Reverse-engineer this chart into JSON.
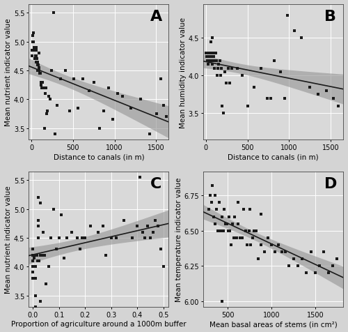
{
  "panel_A": {
    "label": "A",
    "xlabel": "Distance to canals (in m)",
    "ylabel": "Mean nutrient indicator value",
    "xlim": [
      -30,
      1650
    ],
    "ylim": [
      3.3,
      5.65
    ],
    "xticks": [
      0,
      500,
      1000,
      1500
    ],
    "yticks": [
      3.5,
      4.0,
      4.5,
      5.0,
      5.5
    ],
    "x": [
      5,
      10,
      15,
      18,
      22,
      28,
      35,
      40,
      45,
      50,
      55,
      58,
      62,
      68,
      72,
      78,
      82,
      88,
      92,
      98,
      105,
      115,
      120,
      128,
      135,
      145,
      155,
      165,
      175,
      185,
      195,
      210,
      225,
      245,
      265,
      285,
      310,
      350,
      410,
      460,
      510,
      560,
      620,
      690,
      750,
      820,
      870,
      930,
      980,
      1040,
      1100,
      1200,
      1310,
      1420,
      1510,
      1560,
      1590,
      1620,
      60,
      75,
      90
    ],
    "y": [
      4.75,
      4.85,
      5.1,
      5.0,
      5.15,
      5.0,
      4.9,
      4.85,
      4.7,
      4.75,
      4.85,
      4.65,
      4.9,
      4.7,
      4.65,
      4.6,
      4.6,
      4.55,
      4.5,
      4.45,
      4.45,
      4.3,
      4.25,
      4.2,
      4.3,
      4.2,
      3.5,
      4.1,
      4.2,
      3.75,
      3.8,
      4.05,
      4.0,
      4.5,
      5.5,
      3.4,
      3.9,
      4.35,
      4.5,
      3.8,
      4.35,
      3.85,
      4.35,
      4.15,
      4.3,
      3.5,
      3.8,
      4.2,
      3.65,
      4.1,
      4.05,
      3.85,
      4.0,
      3.4,
      3.75,
      4.35,
      3.9,
      3.7,
      4.75,
      4.5,
      4.8
    ]
  },
  "panel_B": {
    "label": "B",
    "xlabel": "Distance to canals (in m)",
    "ylabel": "Mean humidity indicator value",
    "xlim": [
      -30,
      1650
    ],
    "ylim": [
      3.15,
      4.95
    ],
    "xticks": [
      0,
      500,
      1000,
      1500
    ],
    "yticks": [
      3.5,
      4.0,
      4.5
    ],
    "x": [
      5,
      10,
      15,
      18,
      22,
      28,
      35,
      40,
      45,
      50,
      55,
      58,
      62,
      68,
      72,
      78,
      82,
      88,
      92,
      98,
      105,
      115,
      120,
      128,
      135,
      145,
      155,
      165,
      175,
      185,
      195,
      210,
      225,
      245,
      265,
      285,
      310,
      380,
      440,
      500,
      580,
      660,
      740,
      820,
      900,
      980,
      1060,
      1150,
      1250,
      1350,
      1450,
      1530,
      1590,
      60,
      75,
      950,
      780
    ],
    "y": [
      4.3,
      4.25,
      4.3,
      4.2,
      4.15,
      4.3,
      4.2,
      4.25,
      4.2,
      4.3,
      4.2,
      4.2,
      4.25,
      4.3,
      4.2,
      4.15,
      4.3,
      4.2,
      4.25,
      4.1,
      4.2,
      4.3,
      4.3,
      4.2,
      4.0,
      4.1,
      4.15,
      4.2,
      4.0,
      4.1,
      3.6,
      3.5,
      4.05,
      3.9,
      4.1,
      3.9,
      4.1,
      4.1,
      4.0,
      3.6,
      3.85,
      4.1,
      3.7,
      4.2,
      4.05,
      4.8,
      4.6,
      4.5,
      3.85,
      3.75,
      3.8,
      3.7,
      3.6,
      4.45,
      4.5,
      3.7,
      3.7
    ]
  },
  "panel_C": {
    "label": "C",
    "xlabel": "Proportion of agriculture around a 1000m buffer",
    "ylabel": "Mean nutrient indicator value",
    "xlim": [
      -0.015,
      0.52
    ],
    "ylim": [
      3.3,
      5.65
    ],
    "xticks": [
      0.0,
      0.1,
      0.2,
      0.3,
      0.4,
      0.5
    ],
    "yticks": [
      3.5,
      4.0,
      4.5,
      5.0,
      5.5
    ],
    "x": [
      0.0,
      0.0,
      0.0,
      0.0,
      0.0,
      0.0,
      0.005,
      0.007,
      0.01,
      0.01,
      0.01,
      0.01,
      0.015,
      0.018,
      0.02,
      0.02,
      0.02,
      0.025,
      0.03,
      0.03,
      0.035,
      0.04,
      0.045,
      0.05,
      0.06,
      0.07,
      0.08,
      0.09,
      0.1,
      0.11,
      0.12,
      0.13,
      0.15,
      0.17,
      0.18,
      0.19,
      0.2,
      0.22,
      0.25,
      0.27,
      0.28,
      0.3,
      0.32,
      0.35,
      0.38,
      0.4,
      0.41,
      0.42,
      0.43,
      0.44,
      0.45,
      0.46,
      0.47,
      0.48,
      0.49,
      0.5,
      0.01,
      0.02,
      0.03
    ],
    "y": [
      4.2,
      4.1,
      3.8,
      4.0,
      3.9,
      4.3,
      4.15,
      4.2,
      4.0,
      4.0,
      3.8,
      3.5,
      4.2,
      4.1,
      4.8,
      5.2,
      4.5,
      4.1,
      4.2,
      5.1,
      4.2,
      4.6,
      4.2,
      3.7,
      4.0,
      4.5,
      5.0,
      4.3,
      4.5,
      4.9,
      4.15,
      4.5,
      4.6,
      4.5,
      4.3,
      4.5,
      4.5,
      4.7,
      4.6,
      4.7,
      4.2,
      4.5,
      4.5,
      4.8,
      4.5,
      4.7,
      5.55,
      4.6,
      4.5,
      4.7,
      4.5,
      4.6,
      4.8,
      4.7,
      4.3,
      4.0,
      3.3,
      4.7,
      3.4
    ]
  },
  "panel_D": {
    "label": "D",
    "xlabel": "Mean basal areas of stems (in cm²)",
    "ylabel": "Mean temperature indicator value",
    "xlim": [
      220,
      1820
    ],
    "ylim": [
      5.96,
      6.92
    ],
    "xticks": [
      500,
      1000,
      1500
    ],
    "yticks": [
      6.0,
      6.25,
      6.5,
      6.75
    ],
    "x": [
      280,
      295,
      310,
      325,
      340,
      355,
      370,
      385,
      400,
      415,
      430,
      445,
      460,
      475,
      490,
      505,
      520,
      535,
      550,
      565,
      580,
      600,
      620,
      640,
      660,
      680,
      700,
      720,
      740,
      760,
      780,
      800,
      820,
      850,
      880,
      920,
      960,
      1000,
      1040,
      1080,
      1120,
      1160,
      1200,
      1250,
      1300,
      1350,
      1400,
      1450,
      1500,
      1550,
      1600,
      1650,
      1700,
      1750,
      350,
      430,
      510,
      620,
      750,
      880
    ],
    "y": [
      6.65,
      6.75,
      6.7,
      6.82,
      6.6,
      6.55,
      6.65,
      6.5,
      6.7,
      6.5,
      6.6,
      6.5,
      6.65,
      6.55,
      6.55,
      6.5,
      6.5,
      6.4,
      6.55,
      6.45,
      6.6,
      6.45,
      6.55,
      6.45,
      6.45,
      6.65,
      6.5,
      6.4,
      6.5,
      6.4,
      6.45,
      6.5,
      6.5,
      6.3,
      6.4,
      6.35,
      6.45,
      6.4,
      6.35,
      6.4,
      6.35,
      6.35,
      6.25,
      6.3,
      6.25,
      6.3,
      6.2,
      6.35,
      6.2,
      6.25,
      6.35,
      6.2,
      6.25,
      6.3,
      6.75,
      6.0,
      6.6,
      6.7,
      6.65,
      6.62
    ]
  },
  "fig_bg_color": "#d4d4d4",
  "panel_bg_color": "#d9d9d9",
  "scatter_color": "#1a1a1a",
  "line_color": "#1a1a1a",
  "ci_color": "#999999",
  "grid_color": "#ffffff",
  "scatter_size": 5,
  "scatter_marker": "s",
  "line_width": 1.2,
  "label_fontsize": 7.5,
  "tick_fontsize": 7,
  "panel_label_fontsize": 16
}
